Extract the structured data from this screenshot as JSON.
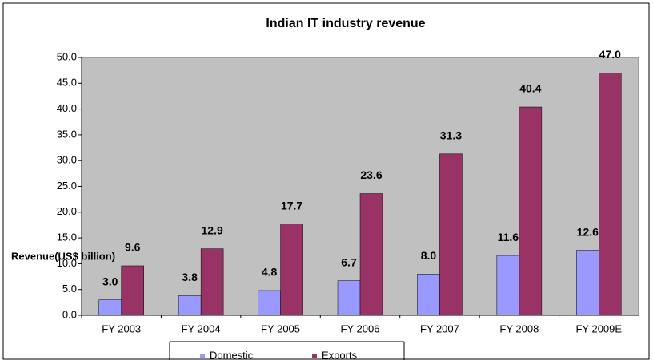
{
  "chart_data": {
    "type": "bar",
    "title": "Indian IT industry revenue",
    "y_label": "Revenue(US$ billion)",
    "categories": [
      "FY 2003",
      "FY 2004",
      "FY 2005",
      "FY 2006",
      "FY 2007",
      "FY 2008",
      "FY 2009E"
    ],
    "series": [
      {
        "name": "Domestic",
        "color": "#9999ff",
        "values": [
          3.0,
          3.8,
          4.8,
          6.7,
          8.0,
          11.6,
          12.6
        ],
        "value_labels": [
          "3.0",
          "3.8",
          "4.8",
          "6.7",
          "8.0",
          "11.6",
          "12.6"
        ]
      },
      {
        "name": "Exports",
        "color": "#993366",
        "values": [
          9.6,
          12.9,
          17.7,
          23.6,
          31.3,
          40.4,
          47.0
        ],
        "value_labels": [
          "9.6",
          "12.9",
          "17.7",
          "23.6",
          "31.3",
          "40.4",
          "47.0"
        ]
      }
    ],
    "ylim": [
      0,
      50
    ],
    "yticks": [
      {
        "value": 0,
        "label": "0.0"
      },
      {
        "value": 5,
        "label": "5.0"
      },
      {
        "value": 10,
        "label": "10.0"
      },
      {
        "value": 15,
        "label": "15.0"
      },
      {
        "value": 20,
        "label": "20.0"
      },
      {
        "value": 25,
        "label": "25.0"
      },
      {
        "value": 30,
        "label": "30.0"
      },
      {
        "value": 35,
        "label": "35.0"
      },
      {
        "value": 40,
        "label": "40.0"
      },
      {
        "value": 45,
        "label": "45.0"
      },
      {
        "value": 50,
        "label": "50.0"
      }
    ],
    "plot_background": "#c0c0c0",
    "grid": false
  }
}
